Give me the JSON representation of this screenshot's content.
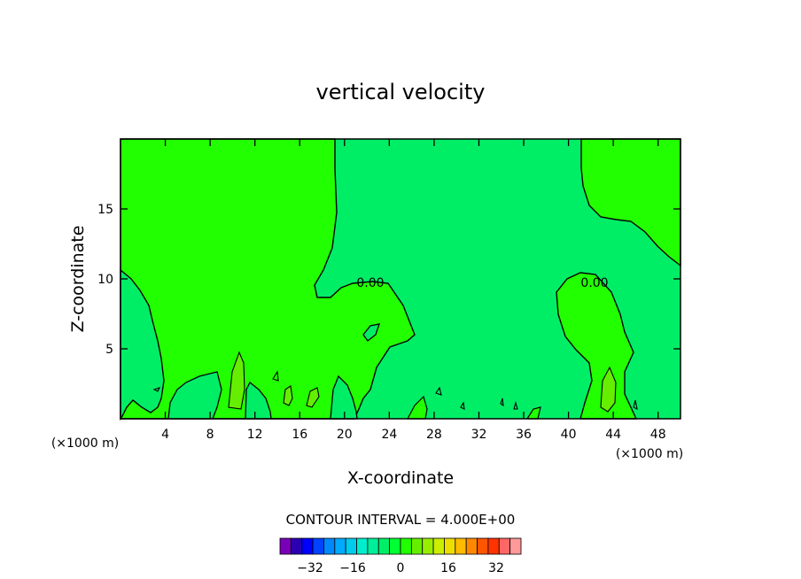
{
  "chart_data": {
    "type": "contour",
    "title": "vertical velocity",
    "xlabel": "X-coordinate",
    "ylabel": "Z-coordinate",
    "x_unit_label": "(×1000 m)",
    "x_unit_label_right": "(×1000 m)",
    "xlim": [
      0,
      50
    ],
    "ylim": [
      0,
      20
    ],
    "x_ticks": [
      4,
      8,
      12,
      16,
      20,
      24,
      28,
      32,
      36,
      40,
      44,
      48
    ],
    "y_ticks": [
      5,
      10,
      15
    ],
    "contour_labels": [
      {
        "text": "0.00",
        "x": 22.5,
        "y": 9.7
      },
      {
        "text": "0.00",
        "x": 42.8,
        "y": 9.7
      }
    ],
    "footer": "CONTOUR INTERVAL = 4.000E+00",
    "colorbar": {
      "colors": [
        "#7a00b8",
        "#2a00b0",
        "#0000ff",
        "#0044ff",
        "#0088ff",
        "#00aaff",
        "#00ccee",
        "#00eecc",
        "#00ee99",
        "#00ee66",
        "#00ff33",
        "#22ff00",
        "#66ee00",
        "#99ee00",
        "#ccee00",
        "#eedd00",
        "#ffbb00",
        "#ff8800",
        "#ff5500",
        "#ff3300",
        "#ff6666",
        "#ff9999"
      ],
      "tick_values": [
        "-32",
        "-16",
        "0",
        "16",
        "32"
      ]
    },
    "fill_colors": {
      "positive": "#22ff00",
      "negative": "#00ee66",
      "strong_positive": "#66ee00"
    },
    "grid": false,
    "legend": "colorbar-bottom"
  }
}
